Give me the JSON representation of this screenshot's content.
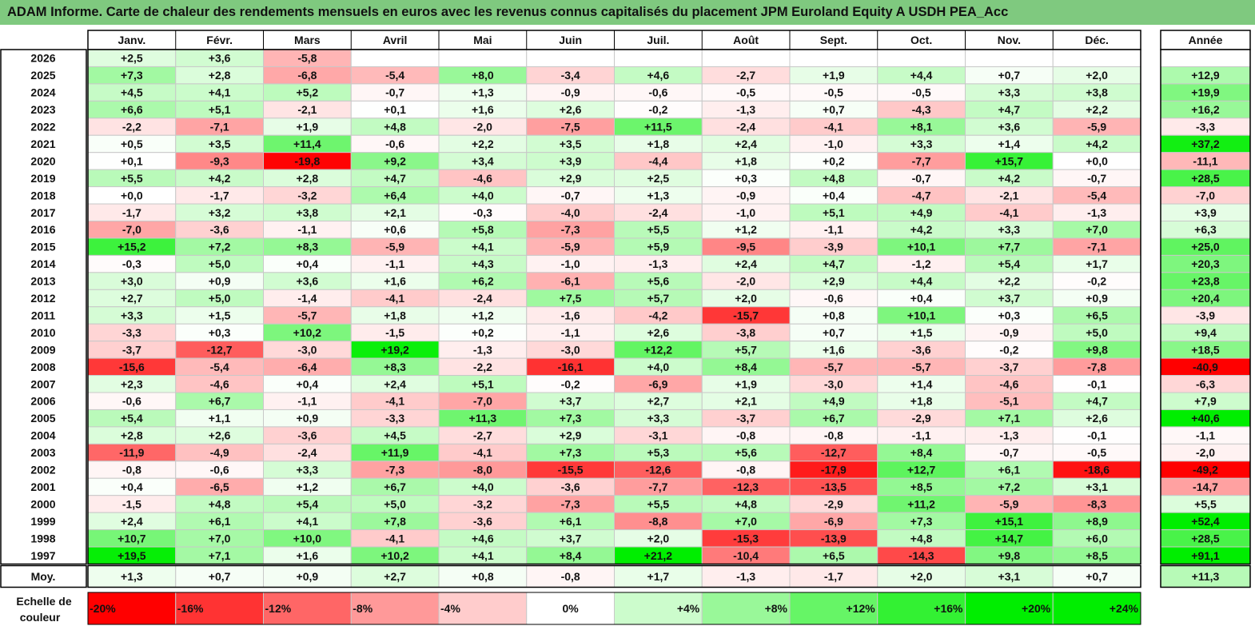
{
  "title": "ADAM Informe. Carte de chaleur des rendements mensuels en euros avec les revenus connus capitalisés du placement JPM Euroland Equity A USDH PEA_Acc",
  "colors": {
    "title_bg": "#7fc97f",
    "negative_max": "#ff0000",
    "positive_max": "#00ee00",
    "neutral": "#ffffff",
    "grid": "#c8c8c8"
  },
  "chart_data": {
    "type": "heatmap",
    "months": [
      "Janv.",
      "Févr.",
      "Mars",
      "Avril",
      "Mai",
      "Juin",
      "Juil.",
      "Août",
      "Sept.",
      "Oct.",
      "Nov.",
      "Déc."
    ],
    "year_header": "Année",
    "rows": [
      {
        "year": "2026",
        "values": [
          "+2,5",
          "+3,6",
          "-5,8",
          "",
          "",
          "",
          "",
          "",
          "",
          "",
          "",
          ""
        ],
        "total": ""
      },
      {
        "year": "2025",
        "values": [
          "+7,3",
          "+2,8",
          "-6,8",
          "-5,4",
          "+8,0",
          "-3,4",
          "+4,6",
          "-2,7",
          "+1,9",
          "+4,4",
          "+0,7",
          "+2,0"
        ],
        "total": "+12,9"
      },
      {
        "year": "2024",
        "values": [
          "+4,5",
          "+4,1",
          "+5,2",
          "-0,7",
          "+1,3",
          "-0,9",
          "-0,6",
          "-0,5",
          "-0,5",
          "-0,5",
          "+3,3",
          "+3,8"
        ],
        "total": "+19,9"
      },
      {
        "year": "2023",
        "values": [
          "+6,6",
          "+5,1",
          "-2,1",
          "+0,1",
          "+1,6",
          "+2,6",
          "-0,2",
          "-1,3",
          "+0,7",
          "-4,3",
          "+4,7",
          "+2,2"
        ],
        "total": "+16,2"
      },
      {
        "year": "2022",
        "values": [
          "-2,2",
          "-7,1",
          "+1,9",
          "+4,8",
          "-2,0",
          "-7,5",
          "+11,5",
          "-2,4",
          "-4,1",
          "+8,1",
          "+3,6",
          "-5,9"
        ],
        "total": "-3,3"
      },
      {
        "year": "2021",
        "values": [
          "+0,5",
          "+3,5",
          "+11,4",
          "-0,6",
          "+2,2",
          "+3,5",
          "+1,8",
          "+2,4",
          "-1,0",
          "+3,3",
          "+1,4",
          "+4,2"
        ],
        "total": "+37,2"
      },
      {
        "year": "2020",
        "values": [
          "+0,1",
          "-9,3",
          "-19,8",
          "+9,2",
          "+3,4",
          "+3,9",
          "-4,4",
          "+1,8",
          "+0,2",
          "-7,7",
          "+15,7",
          "+0,0"
        ],
        "total": "-11,1"
      },
      {
        "year": "2019",
        "values": [
          "+5,5",
          "+4,2",
          "+2,8",
          "+4,7",
          "-4,6",
          "+2,9",
          "+2,5",
          "+0,3",
          "+4,8",
          "-0,7",
          "+4,2",
          "-0,7"
        ],
        "total": "+28,5"
      },
      {
        "year": "2018",
        "values": [
          "+0,0",
          "-1,7",
          "-3,2",
          "+6,4",
          "+4,0",
          "-0,7",
          "+1,3",
          "-0,9",
          "+0,4",
          "-4,7",
          "-2,1",
          "-5,4"
        ],
        "total": "-7,0"
      },
      {
        "year": "2017",
        "values": [
          "-1,7",
          "+3,2",
          "+3,8",
          "+2,1",
          "-0,3",
          "-4,0",
          "-2,4",
          "-1,0",
          "+5,1",
          "+4,9",
          "-4,1",
          "-1,3"
        ],
        "total": "+3,9"
      },
      {
        "year": "2016",
        "values": [
          "-7,0",
          "-3,6",
          "-1,1",
          "+0,6",
          "+5,8",
          "-7,3",
          "+5,5",
          "+1,2",
          "-1,1",
          "+4,2",
          "+3,3",
          "+7,0"
        ],
        "total": "+6,3"
      },
      {
        "year": "2015",
        "values": [
          "+15,2",
          "+7,2",
          "+8,3",
          "-5,9",
          "+4,1",
          "-5,9",
          "+5,9",
          "-9,5",
          "-3,9",
          "+10,1",
          "+7,7",
          "-7,1"
        ],
        "total": "+25,0"
      },
      {
        "year": "2014",
        "values": [
          "-0,3",
          "+5,0",
          "+0,4",
          "-1,1",
          "+4,3",
          "-1,0",
          "-1,3",
          "+2,4",
          "+4,7",
          "-1,2",
          "+5,4",
          "+1,7"
        ],
        "total": "+20,3"
      },
      {
        "year": "2013",
        "values": [
          "+3,0",
          "+0,9",
          "+3,6",
          "+1,6",
          "+6,2",
          "-6,1",
          "+5,6",
          "-2,0",
          "+2,9",
          "+4,4",
          "+2,2",
          "-0,2"
        ],
        "total": "+23,8"
      },
      {
        "year": "2012",
        "values": [
          "+2,7",
          "+5,0",
          "-1,4",
          "-4,1",
          "-2,4",
          "+7,5",
          "+5,7",
          "+2,0",
          "-0,6",
          "+0,4",
          "+3,7",
          "+0,9"
        ],
        "total": "+20,4"
      },
      {
        "year": "2011",
        "values": [
          "+3,3",
          "+1,5",
          "-5,7",
          "+1,8",
          "+1,2",
          "-1,6",
          "-4,2",
          "-15,7",
          "+0,8",
          "+10,1",
          "+0,3",
          "+6,5"
        ],
        "total": "-3,9"
      },
      {
        "year": "2010",
        "values": [
          "-3,3",
          "+0,3",
          "+10,2",
          "-1,5",
          "+0,2",
          "-1,1",
          "+2,6",
          "-3,8",
          "+0,7",
          "+1,5",
          "-0,9",
          "+5,0"
        ],
        "total": "+9,4"
      },
      {
        "year": "2009",
        "values": [
          "-3,7",
          "-12,7",
          "-3,0",
          "+19,2",
          "-1,3",
          "-3,0",
          "+12,2",
          "+5,7",
          "+1,6",
          "-3,6",
          "-0,2",
          "+9,8"
        ],
        "total": "+18,5"
      },
      {
        "year": "2008",
        "values": [
          "-15,6",
          "-5,4",
          "-6,4",
          "+8,3",
          "-2,2",
          "-16,1",
          "+4,0",
          "+8,4",
          "-5,7",
          "-5,7",
          "-3,7",
          "-7,8"
        ],
        "total": "-40,9"
      },
      {
        "year": "2007",
        "values": [
          "+2,3",
          "-4,6",
          "+0,4",
          "+2,4",
          "+5,1",
          "-0,2",
          "-6,9",
          "+1,9",
          "-3,0",
          "+1,4",
          "-4,6",
          "-0,1"
        ],
        "total": "-6,3"
      },
      {
        "year": "2006",
        "values": [
          "-0,6",
          "+6,7",
          "-1,1",
          "-4,1",
          "-7,0",
          "+3,7",
          "+2,7",
          "+2,1",
          "+4,9",
          "+1,8",
          "-5,1",
          "+4,7"
        ],
        "total": "+7,9"
      },
      {
        "year": "2005",
        "values": [
          "+5,4",
          "+1,1",
          "+0,9",
          "-3,3",
          "+11,3",
          "+7,3",
          "+3,3",
          "-3,7",
          "+6,7",
          "-2,9",
          "+7,1",
          "+2,6"
        ],
        "total": "+40,6"
      },
      {
        "year": "2004",
        "values": [
          "+2,8",
          "+2,6",
          "-3,6",
          "+4,5",
          "-2,7",
          "+2,9",
          "-3,1",
          "-0,8",
          "-0,8",
          "-1,1",
          "-1,3",
          "-0,1"
        ],
        "total": "-1,1"
      },
      {
        "year": "2003",
        "values": [
          "-11,9",
          "-4,9",
          "-2,4",
          "+11,9",
          "-4,1",
          "+7,3",
          "+5,3",
          "+5,6",
          "-12,7",
          "+8,4",
          "-0,7",
          "-0,5"
        ],
        "total": "-2,0"
      },
      {
        "year": "2002",
        "values": [
          "-0,8",
          "-0,6",
          "+3,3",
          "-7,3",
          "-8,0",
          "-15,5",
          "-12,6",
          "-0,8",
          "-17,9",
          "+12,7",
          "+6,1",
          "-18,6"
        ],
        "total": "-49,2"
      },
      {
        "year": "2001",
        "values": [
          "+0,4",
          "-6,5",
          "+1,2",
          "+6,7",
          "+4,0",
          "-3,6",
          "-7,7",
          "-12,3",
          "-13,5",
          "+8,5",
          "+7,2",
          "+3,1"
        ],
        "total": "-14,7"
      },
      {
        "year": "2000",
        "values": [
          "-1,5",
          "+4,8",
          "+5,4",
          "+5,0",
          "-3,2",
          "-7,3",
          "+5,5",
          "+4,8",
          "-2,9",
          "+11,2",
          "-5,9",
          "-8,3"
        ],
        "total": "+5,5"
      },
      {
        "year": "1999",
        "values": [
          "+2,4",
          "+6,1",
          "+4,1",
          "+7,8",
          "-3,6",
          "+6,1",
          "-8,8",
          "+7,0",
          "-6,9",
          "+7,3",
          "+15,1",
          "+8,9"
        ],
        "total": "+52,4"
      },
      {
        "year": "1998",
        "values": [
          "+10,7",
          "+7,0",
          "+10,0",
          "-4,1",
          "+4,6",
          "+3,7",
          "+2,0",
          "-15,3",
          "-13,9",
          "+4,8",
          "+14,7",
          "+6,0"
        ],
        "total": "+28,5"
      },
      {
        "year": "1997",
        "values": [
          "+19,5",
          "+7,1",
          "+1,6",
          "+10,2",
          "+4,1",
          "+8,4",
          "+21,2",
          "-10,4",
          "+6,5",
          "-14,3",
          "+9,8",
          "+8,5"
        ],
        "total": "+91,1"
      }
    ],
    "average": {
      "label": "Moy.",
      "values": [
        "+1,3",
        "+0,7",
        "+0,9",
        "+2,7",
        "+0,8",
        "-0,8",
        "+1,7",
        "-1,3",
        "-1,7",
        "+2,0",
        "+3,1",
        "+0,7"
      ],
      "total": "+11,3"
    },
    "scale": {
      "label_line1": "Echelle de",
      "label_line2": "couleur",
      "steps": [
        {
          "label": "-20%",
          "value": -20
        },
        {
          "label": "-16%",
          "value": -16
        },
        {
          "label": "-12%",
          "value": -12
        },
        {
          "label": "-8%",
          "value": -8
        },
        {
          "label": "-4%",
          "value": -4
        },
        {
          "label": "0%",
          "value": 0
        },
        {
          "label": "+4%",
          "value": 4
        },
        {
          "label": "+8%",
          "value": 8
        },
        {
          "label": "+12%",
          "value": 12
        },
        {
          "label": "+16%",
          "value": 16
        },
        {
          "label": "+20%",
          "value": 20
        },
        {
          "label": "+24%",
          "value": 24
        }
      ]
    }
  }
}
